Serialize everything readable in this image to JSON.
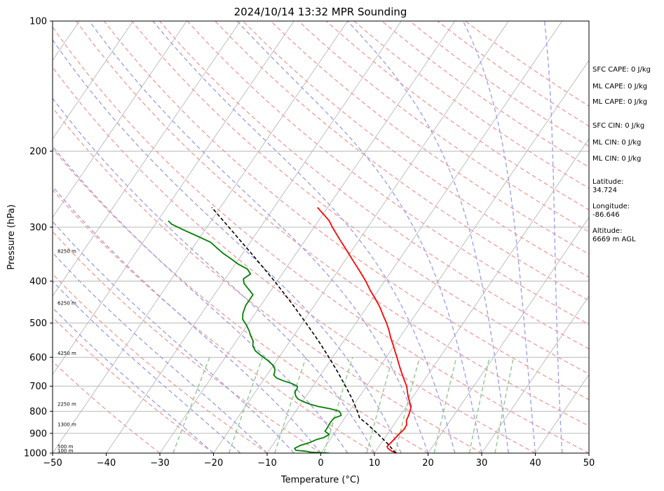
{
  "chart_data": {
    "type": "skew-t",
    "title": "2024/10/14 13:32 MPR Sounding",
    "xlabel": "Temperature (°C)",
    "ylabel": "Pressure (hPa)",
    "xlim": [
      -50,
      50
    ],
    "ylim": [
      1000,
      100
    ],
    "y_scale": "log",
    "grid": true,
    "x_ticks": [
      -50,
      -40,
      -30,
      -20,
      -10,
      0,
      10,
      20,
      30,
      40,
      50
    ],
    "x_tick_labels": [
      "−50",
      "−40",
      "−30",
      "−20",
      "−10",
      "0",
      "10",
      "20",
      "30",
      "40",
      "50"
    ],
    "y_ticks": [
      1000,
      900,
      800,
      700,
      600,
      500,
      400,
      300,
      200,
      100
    ],
    "height_labels": [
      {
        "p": 1000,
        "text": "100 m"
      },
      {
        "p": 978,
        "text": "500 m"
      },
      {
        "p": 870,
        "text": "1300 m"
      },
      {
        "p": 780,
        "text": "2250 m"
      },
      {
        "p": 595,
        "text": "4250 m"
      },
      {
        "p": 455,
        "text": "6250 m"
      },
      {
        "p": 345,
        "text": "8250 m"
      }
    ],
    "series": [
      {
        "role": "temperature",
        "color": "#ff0000",
        "points": [
          [
            1000,
            14.2
          ],
          [
            990,
            13.0
          ],
          [
            975,
            11.9
          ],
          [
            965,
            11.5
          ],
          [
            950,
            11.7
          ],
          [
            930,
            11.9
          ],
          [
            900,
            12.2
          ],
          [
            880,
            12.5
          ],
          [
            860,
            12.4
          ],
          [
            840,
            11.8
          ],
          [
            820,
            11.6
          ],
          [
            800,
            11.3
          ],
          [
            780,
            10.9
          ],
          [
            760,
            10.0
          ],
          [
            740,
            9.1
          ],
          [
            720,
            8.3
          ],
          [
            700,
            7.5
          ],
          [
            680,
            6.4
          ],
          [
            660,
            5.3
          ],
          [
            640,
            4.2
          ],
          [
            620,
            3.1
          ],
          [
            600,
            2.0
          ],
          [
            580,
            0.8
          ],
          [
            560,
            -0.4
          ],
          [
            540,
            -1.7
          ],
          [
            520,
            -2.9
          ],
          [
            500,
            -4.3
          ],
          [
            480,
            -5.9
          ],
          [
            460,
            -7.5
          ],
          [
            440,
            -9.4
          ],
          [
            420,
            -11.5
          ],
          [
            400,
            -13.5
          ],
          [
            380,
            -15.8
          ],
          [
            360,
            -18.3
          ],
          [
            340,
            -20.9
          ],
          [
            320,
            -23.7
          ],
          [
            300,
            -26.6
          ],
          [
            290,
            -28.0
          ],
          [
            280,
            -29.9
          ],
          [
            270,
            -31.9
          ]
        ]
      },
      {
        "role": "dewpoint",
        "color": "#008000",
        "points": [
          [
            1000,
            1.5
          ],
          [
            995,
            -2.0
          ],
          [
            990,
            -3.0
          ],
          [
            985,
            -5.0
          ],
          [
            975,
            -5.5
          ],
          [
            960,
            -4.8
          ],
          [
            945,
            -3.4
          ],
          [
            930,
            -2.5
          ],
          [
            920,
            -1.4
          ],
          [
            905,
            -0.8
          ],
          [
            890,
            -2.0
          ],
          [
            875,
            -2.0
          ],
          [
            860,
            -2.1
          ],
          [
            845,
            -2.1
          ],
          [
            830,
            -2.0
          ],
          [
            818,
            -1.0
          ],
          [
            808,
            -1.4
          ],
          [
            800,
            -1.9
          ],
          [
            790,
            -3.8
          ],
          [
            780,
            -6.4
          ],
          [
            770,
            -8.3
          ],
          [
            760,
            -9.8
          ],
          [
            750,
            -11.1
          ],
          [
            740,
            -11.8
          ],
          [
            730,
            -12.3
          ],
          [
            720,
            -12.6
          ],
          [
            710,
            -12.6
          ],
          [
            700,
            -12.9
          ],
          [
            690,
            -14.3
          ],
          [
            680,
            -16.2
          ],
          [
            670,
            -17.8
          ],
          [
            660,
            -18.7
          ],
          [
            650,
            -18.9
          ],
          [
            640,
            -19.2
          ],
          [
            625,
            -20.2
          ],
          [
            610,
            -21.7
          ],
          [
            595,
            -23.5
          ],
          [
            580,
            -25.2
          ],
          [
            565,
            -26.3
          ],
          [
            550,
            -26.9
          ],
          [
            535,
            -28.0
          ],
          [
            520,
            -29.0
          ],
          [
            505,
            -30.2
          ],
          [
            490,
            -31.6
          ],
          [
            475,
            -32.3
          ],
          [
            455,
            -32.8
          ],
          [
            430,
            -32.8
          ],
          [
            420,
            -34.0
          ],
          [
            405,
            -35.9
          ],
          [
            395,
            -36.6
          ],
          [
            385,
            -35.9
          ],
          [
            375,
            -37.1
          ],
          [
            365,
            -39.5
          ],
          [
            355,
            -41.5
          ],
          [
            345,
            -43.6
          ],
          [
            335,
            -45.5
          ],
          [
            325,
            -47.4
          ],
          [
            315,
            -50.5
          ],
          [
            305,
            -53.8
          ],
          [
            295,
            -57.0
          ],
          [
            290,
            -58.0
          ]
        ]
      },
      {
        "role": "parcel",
        "color": "#000000",
        "points": [
          [
            1000,
            14.0
          ],
          [
            950,
            11.2
          ],
          [
            900,
            8.0
          ],
          [
            850,
            4.5
          ],
          [
            830,
            2.8
          ],
          [
            800,
            1.5
          ],
          [
            750,
            -1.0
          ],
          [
            700,
            -3.9
          ],
          [
            650,
            -7.1
          ],
          [
            600,
            -10.7
          ],
          [
            550,
            -14.7
          ],
          [
            500,
            -19.3
          ],
          [
            450,
            -24.5
          ],
          [
            400,
            -30.5
          ],
          [
            350,
            -37.6
          ],
          [
            300,
            -45.9
          ],
          [
            270,
            -51.6
          ]
        ]
      }
    ],
    "side_text": {
      "sfc_cape": "SFC CAPE: 0 J/kg",
      "ml_cape": "ML CAPE: 0 J/kg",
      "mu_cape": "ML CAPE: 0 J/kg",
      "sfc_cin": "SFC CIN: 0 J/kg",
      "ml_cin": "ML CIN: 0 J/kg",
      "mu_cin": "ML CIN: 0 J/kg",
      "latitude_label": "Latitude:",
      "latitude_value": "34.724",
      "longitude_label": "Longitude:",
      "longitude_value": "-86.646",
      "altitude_label": "Altitude:",
      "altitude_value": "6669 m AGL"
    },
    "colors": {
      "temperature": "#ff0000",
      "dewpoint": "#008000",
      "parcel": "#000000",
      "dry_adiabat": "#f4a0a0",
      "moist_adiabat": "#a0a0f0",
      "mixing_ratio": "#90c890",
      "grid": "#b0b0b0"
    }
  }
}
